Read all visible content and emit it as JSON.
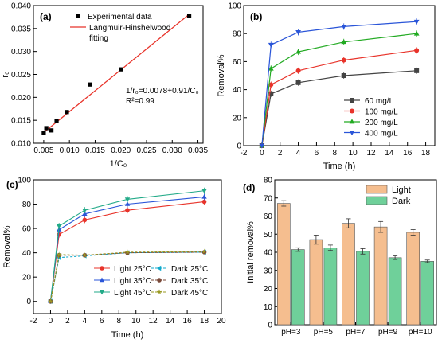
{
  "chart_data": [
    {
      "panel": "(a)",
      "type": "scatter",
      "xlabel": "1/C₀",
      "ylabel": "r₀",
      "xlim": [
        0.003,
        0.036
      ],
      "ylim": [
        0.01,
        0.04
      ],
      "xticks": [
        "0.005",
        "0.010",
        "0.015",
        "0.020",
        "0.025",
        "0.030",
        "0.035"
      ],
      "yticks": [
        "0.010",
        "0.015",
        "0.020",
        "0.025",
        "0.030",
        "0.035",
        "0.040"
      ],
      "legend": [
        "Experimental data",
        "Langmuir-Hinshelwood",
        "fitting"
      ],
      "series": [
        {
          "name": "Experimental data",
          "style": "markers",
          "color": "#000000",
          "x": [
            0.005,
            0.0055,
            0.0065,
            0.0075,
            0.0095,
            0.014,
            0.02,
            0.0333
          ],
          "y": [
            0.0122,
            0.0133,
            0.0128,
            0.0149,
            0.0168,
            0.0228,
            0.0261,
            0.0378
          ]
        },
        {
          "name": "Langmuir-Hinshelwood fitting",
          "style": "line",
          "color": "#e8332a",
          "x": [
            0.005,
            0.0333
          ],
          "y": [
            0.01235,
            0.0381
          ]
        }
      ],
      "annotations": [
        "1/r₀=0.0078+0.91/C₀",
        "R²=0.99"
      ]
    },
    {
      "panel": "(b)",
      "type": "line",
      "xlabel": "Time (h)",
      "ylabel": "Removal%",
      "xlim": [
        -2,
        19
      ],
      "ylim": [
        0,
        100
      ],
      "xticks": [
        "-2",
        "0",
        "2",
        "4",
        "6",
        "8",
        "10",
        "12",
        "14",
        "16",
        "18"
      ],
      "yticks": [
        "0",
        "20",
        "40",
        "60",
        "80",
        "100"
      ],
      "x": [
        0,
        1,
        4,
        9,
        17
      ],
      "series": [
        {
          "name": "60 mg/L",
          "color": "#444444",
          "marker": "square",
          "values": [
            0,
            37,
            45,
            50,
            53.5
          ]
        },
        {
          "name": "100 mg/L",
          "color": "#e8332a",
          "marker": "circle",
          "values": [
            0,
            43.5,
            53.5,
            61,
            68
          ]
        },
        {
          "name": "200 mg/L",
          "color": "#22aa22",
          "marker": "triangle",
          "values": [
            0,
            55,
            67,
            74,
            80
          ]
        },
        {
          "name": "400 mg/L",
          "color": "#2a55d8",
          "marker": "triangle-down",
          "values": [
            0,
            72,
            81,
            85,
            88.5
          ]
        }
      ]
    },
    {
      "panel": "(c)",
      "type": "line",
      "xlabel": "Time (h)",
      "ylabel": "Removal%",
      "xlim": [
        -2,
        20
      ],
      "ylim": [
        -10,
        100
      ],
      "xticks": [
        "-2",
        "0",
        "2",
        "4",
        "6",
        "8",
        "10",
        "12",
        "14",
        "16",
        "18",
        "20"
      ],
      "yticks": [
        "0",
        "20",
        "40",
        "60",
        "80",
        "100"
      ],
      "x": [
        0,
        1,
        4,
        9,
        18
      ],
      "series": [
        {
          "name": "Light 25°C",
          "color": "#e8332a",
          "marker": "circle",
          "dash": false,
          "values": [
            0,
            55,
            67,
            75,
            82
          ]
        },
        {
          "name": "Light 35°C",
          "color": "#2a55d8",
          "marker": "triangle",
          "dash": false,
          "values": [
            0,
            59,
            72,
            80,
            86
          ]
        },
        {
          "name": "Light 45°C",
          "color": "#22aa88",
          "marker": "triangle-down",
          "dash": false,
          "values": [
            0,
            62,
            75,
            84,
            91
          ]
        },
        {
          "name": "Dark 25°C",
          "color": "#11aacc",
          "marker": "triangle-left",
          "dash": true,
          "values": [
            0,
            36,
            37.5,
            40,
            40.5
          ]
        },
        {
          "name": "Dark 35°C",
          "color": "#7a4a3a",
          "marker": "circle",
          "dash": true,
          "values": [
            0,
            38,
            38,
            40,
            40.5
          ]
        },
        {
          "name": "Dark 45°C",
          "color": "#999922",
          "marker": "star",
          "dash": true,
          "values": [
            0,
            38.5,
            38,
            40.5,
            41
          ]
        }
      ]
    },
    {
      "panel": "(d)",
      "type": "bar",
      "xlabel": "",
      "ylabel": "Initial removal%",
      "ylim": [
        0,
        80
      ],
      "yticks": [
        "0",
        "10",
        "20",
        "30",
        "40",
        "50",
        "60",
        "70",
        "80"
      ],
      "categories": [
        "pH=3",
        "pH=5",
        "pH=7",
        "pH=9",
        "pH=10"
      ],
      "series": [
        {
          "name": "Light",
          "color": "#f5be8f",
          "values": [
            67,
            47,
            56,
            54,
            51
          ],
          "errors": [
            1.5,
            2.5,
            2.5,
            3,
            1.5
          ]
        },
        {
          "name": "Dark",
          "color": "#6fd09a",
          "values": [
            41.5,
            42.5,
            40.5,
            37,
            35
          ],
          "errors": [
            1,
            1.5,
            1.5,
            1,
            0.7
          ]
        }
      ]
    }
  ]
}
